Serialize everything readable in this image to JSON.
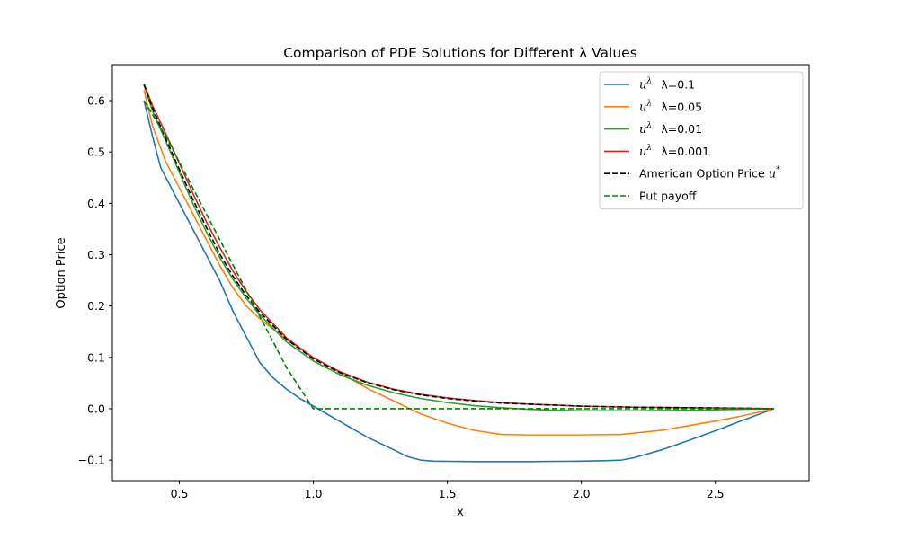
{
  "chart_data": {
    "type": "line",
    "title": "Comparison of PDE Solutions for Different λ Values",
    "xlabel": "x",
    "ylabel": "Option Price",
    "xlim": [
      0.25,
      2.85
    ],
    "ylim": [
      -0.14,
      0.67
    ],
    "xticks": [
      0.5,
      1.0,
      1.5,
      2.0,
      2.5
    ],
    "xtick_labels": [
      "0.5",
      "1.0",
      "1.5",
      "2.0",
      "2.5"
    ],
    "yticks": [
      -0.1,
      0.0,
      0.1,
      0.2,
      0.3,
      0.4,
      0.5,
      0.6
    ],
    "ytick_labels": [
      "−0.1",
      "0.0",
      "0.1",
      "0.2",
      "0.3",
      "0.4",
      "0.5",
      "0.6"
    ],
    "grid": false,
    "legend_position": "top-right",
    "series": [
      {
        "legend_math": "u",
        "legend_sup": "λ",
        "legend_text": "λ=0.1",
        "color": "#1f77b4",
        "dash": "solid",
        "points": [
          [
            0.368,
            0.6
          ],
          [
            0.4,
            0.53
          ],
          [
            0.43,
            0.47
          ],
          [
            0.46,
            0.44
          ],
          [
            0.5,
            0.4
          ],
          [
            0.55,
            0.35
          ],
          [
            0.6,
            0.3
          ],
          [
            0.65,
            0.25
          ],
          [
            0.7,
            0.19
          ],
          [
            0.75,
            0.14
          ],
          [
            0.8,
            0.09
          ],
          [
            0.85,
            0.06
          ],
          [
            0.9,
            0.038
          ],
          [
            0.95,
            0.02
          ],
          [
            1.0,
            0.005
          ],
          [
            1.1,
            -0.025
          ],
          [
            1.2,
            -0.055
          ],
          [
            1.3,
            -0.08
          ],
          [
            1.35,
            -0.093
          ],
          [
            1.4,
            -0.1
          ],
          [
            1.45,
            -0.102
          ],
          [
            1.6,
            -0.103
          ],
          [
            1.8,
            -0.103
          ],
          [
            2.0,
            -0.102
          ],
          [
            2.1,
            -0.101
          ],
          [
            2.15,
            -0.1
          ],
          [
            2.2,
            -0.095
          ],
          [
            2.3,
            -0.08
          ],
          [
            2.4,
            -0.062
          ],
          [
            2.5,
            -0.043
          ],
          [
            2.6,
            -0.023
          ],
          [
            2.718,
            0.0
          ]
        ]
      },
      {
        "legend_math": "u",
        "legend_sup": "λ",
        "legend_text": "λ=0.05",
        "color": "#ff7f0e",
        "dash": "solid",
        "points": [
          [
            0.368,
            0.62
          ],
          [
            0.4,
            0.55
          ],
          [
            0.45,
            0.48
          ],
          [
            0.5,
            0.43
          ],
          [
            0.55,
            0.38
          ],
          [
            0.6,
            0.33
          ],
          [
            0.65,
            0.28
          ],
          [
            0.7,
            0.235
          ],
          [
            0.75,
            0.2
          ],
          [
            0.8,
            0.175
          ],
          [
            0.9,
            0.135
          ],
          [
            1.0,
            0.1
          ],
          [
            1.1,
            0.07
          ],
          [
            1.2,
            0.04
          ],
          [
            1.3,
            0.015
          ],
          [
            1.4,
            -0.01
          ],
          [
            1.5,
            -0.028
          ],
          [
            1.6,
            -0.042
          ],
          [
            1.7,
            -0.05
          ],
          [
            1.8,
            -0.051
          ],
          [
            2.0,
            -0.051
          ],
          [
            2.15,
            -0.05
          ],
          [
            2.3,
            -0.042
          ],
          [
            2.4,
            -0.033
          ],
          [
            2.5,
            -0.024
          ],
          [
            2.6,
            -0.014
          ],
          [
            2.718,
            0.0
          ]
        ]
      },
      {
        "legend_math": "u",
        "legend_sup": "λ",
        "legend_text": "λ=0.01",
        "color": "#2ca02c",
        "dash": "solid",
        "points": [
          [
            0.368,
            0.63
          ],
          [
            0.4,
            0.58
          ],
          [
            0.45,
            0.52
          ],
          [
            0.5,
            0.46
          ],
          [
            0.55,
            0.4
          ],
          [
            0.6,
            0.345
          ],
          [
            0.65,
            0.295
          ],
          [
            0.7,
            0.252
          ],
          [
            0.75,
            0.215
          ],
          [
            0.8,
            0.183
          ],
          [
            0.9,
            0.13
          ],
          [
            1.0,
            0.093
          ],
          [
            1.1,
            0.066
          ],
          [
            1.2,
            0.046
          ],
          [
            1.3,
            0.031
          ],
          [
            1.4,
            0.02
          ],
          [
            1.5,
            0.012
          ],
          [
            1.6,
            0.006
          ],
          [
            1.7,
            0.002
          ],
          [
            1.8,
            -0.001
          ],
          [
            1.9,
            -0.003
          ],
          [
            2.0,
            -0.004
          ],
          [
            2.2,
            -0.004
          ],
          [
            2.4,
            -0.003
          ],
          [
            2.6,
            -0.001
          ],
          [
            2.718,
            0.0
          ]
        ]
      },
      {
        "legend_math": "u",
        "legend_sup": "λ",
        "legend_text": "λ=0.001",
        "color": "#d62728",
        "dash": "solid",
        "points": [
          [
            0.368,
            0.632
          ],
          [
            0.4,
            0.59
          ],
          [
            0.45,
            0.535
          ],
          [
            0.5,
            0.478
          ],
          [
            0.55,
            0.42
          ],
          [
            0.6,
            0.365
          ],
          [
            0.65,
            0.315
          ],
          [
            0.7,
            0.268
          ],
          [
            0.75,
            0.228
          ],
          [
            0.8,
            0.193
          ],
          [
            0.9,
            0.138
          ],
          [
            1.0,
            0.099
          ],
          [
            1.1,
            0.072
          ],
          [
            1.2,
            0.052
          ],
          [
            1.3,
            0.038
          ],
          [
            1.4,
            0.028
          ],
          [
            1.5,
            0.021
          ],
          [
            1.6,
            0.016
          ],
          [
            1.7,
            0.012
          ],
          [
            1.8,
            0.009
          ],
          [
            1.9,
            0.007
          ],
          [
            2.0,
            0.005
          ],
          [
            2.2,
            0.003
          ],
          [
            2.4,
            0.002
          ],
          [
            2.6,
            0.001
          ],
          [
            2.718,
            0.0
          ]
        ]
      },
      {
        "legend_math": "",
        "legend_sup": "",
        "legend_text": "American Option Price",
        "legend_math_after": "u",
        "legend_sup_after": "*",
        "color": "#000000",
        "dash": "dashed",
        "points": [
          [
            0.368,
            0.632
          ],
          [
            0.4,
            0.585
          ],
          [
            0.45,
            0.525
          ],
          [
            0.5,
            0.466
          ],
          [
            0.55,
            0.408
          ],
          [
            0.6,
            0.354
          ],
          [
            0.65,
            0.302
          ],
          [
            0.7,
            0.258
          ],
          [
            0.75,
            0.22
          ],
          [
            0.8,
            0.188
          ],
          [
            0.9,
            0.135
          ],
          [
            1.0,
            0.097
          ],
          [
            1.1,
            0.07
          ],
          [
            1.2,
            0.051
          ],
          [
            1.3,
            0.037
          ],
          [
            1.4,
            0.027
          ],
          [
            1.5,
            0.02
          ],
          [
            1.6,
            0.015
          ],
          [
            1.7,
            0.011
          ],
          [
            1.8,
            0.009
          ],
          [
            1.9,
            0.007
          ],
          [
            2.0,
            0.005
          ],
          [
            2.2,
            0.003
          ],
          [
            2.4,
            0.002
          ],
          [
            2.6,
            0.001
          ],
          [
            2.718,
            0.0
          ]
        ]
      },
      {
        "legend_math": "",
        "legend_sup": "",
        "legend_text": "Put payoff",
        "color": "#008000",
        "dash": "dashed",
        "points": [
          [
            0.368,
            0.6
          ],
          [
            0.45,
            0.53
          ],
          [
            0.5,
            0.48
          ],
          [
            0.6,
            0.38
          ],
          [
            0.7,
            0.28
          ],
          [
            0.8,
            0.18
          ],
          [
            0.9,
            0.08
          ],
          [
            1.0,
            0.0
          ],
          [
            1.5,
            0.0
          ],
          [
            2.0,
            0.0
          ],
          [
            2.718,
            0.0
          ]
        ]
      }
    ]
  }
}
